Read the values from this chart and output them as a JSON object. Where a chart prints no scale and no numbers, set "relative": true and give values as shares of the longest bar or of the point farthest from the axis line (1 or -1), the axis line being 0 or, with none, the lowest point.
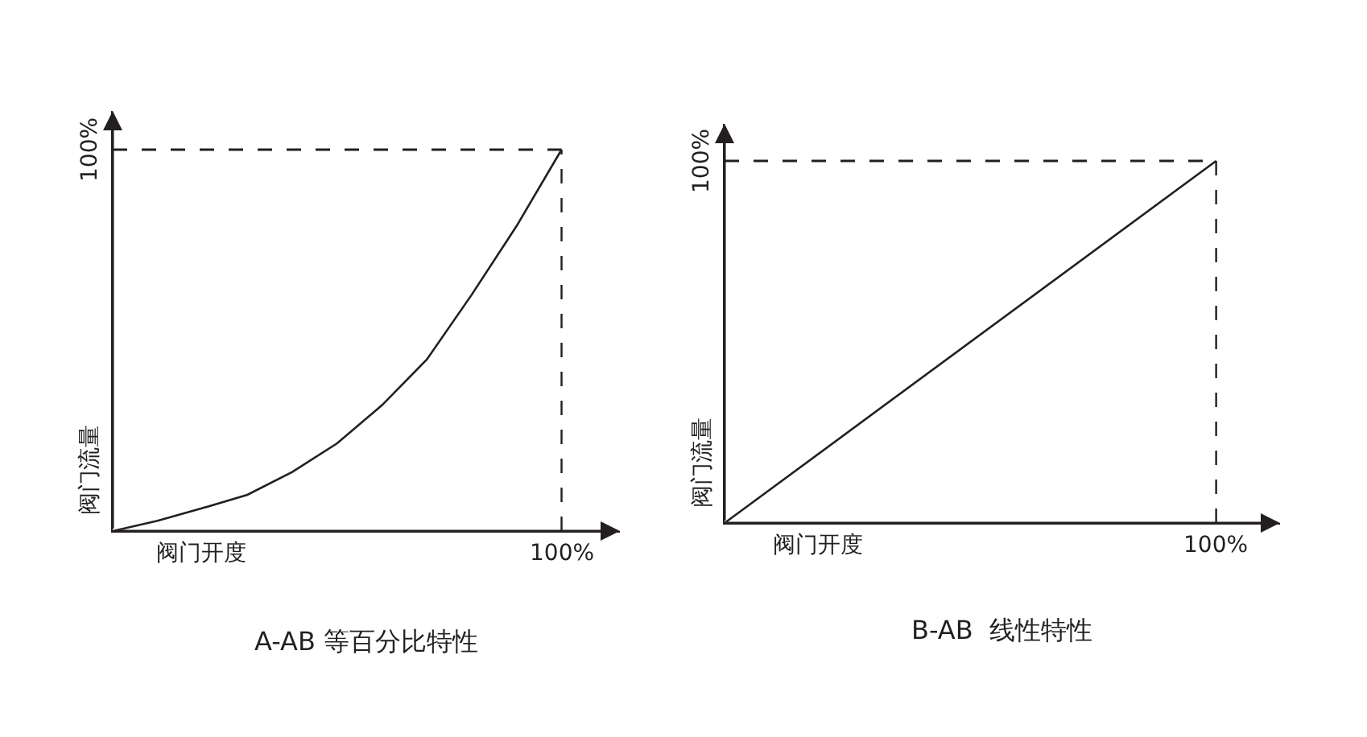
{
  "chart_data": [
    {
      "type": "line",
      "relative": true,
      "title": "A-AB 等百分比特性",
      "xlabel": "阀门开度",
      "ylabel": "阀门流量",
      "color": "#231f20",
      "categories": [
        null,
        null,
        null,
        null,
        null,
        null,
        null,
        null,
        null,
        null,
        null
      ],
      "values": [
        0,
        0.027,
        0.06,
        0.095,
        0.155,
        0.23,
        0.33,
        0.45,
        0.62,
        0.8,
        1
      ],
      "ref_lines": [
        {
          "axis": "y",
          "value": 1,
          "line_style": "dashed"
        }
      ],
      "annotations": [
        "100%",
        "100%"
      ]
    },
    {
      "type": "line",
      "relative": true,
      "title": "B-AB  线性特性",
      "xlabel": "阀门开度",
      "ylabel": "阀门流量",
      "color": "#231f20",
      "categories": [
        null,
        null
      ],
      "values": [
        0,
        1
      ],
      "ref_lines": [
        {
          "axis": "y",
          "value": 1,
          "line_style": "dashed"
        }
      ],
      "annotations": [
        "100%",
        "100%"
      ]
    }
  ]
}
